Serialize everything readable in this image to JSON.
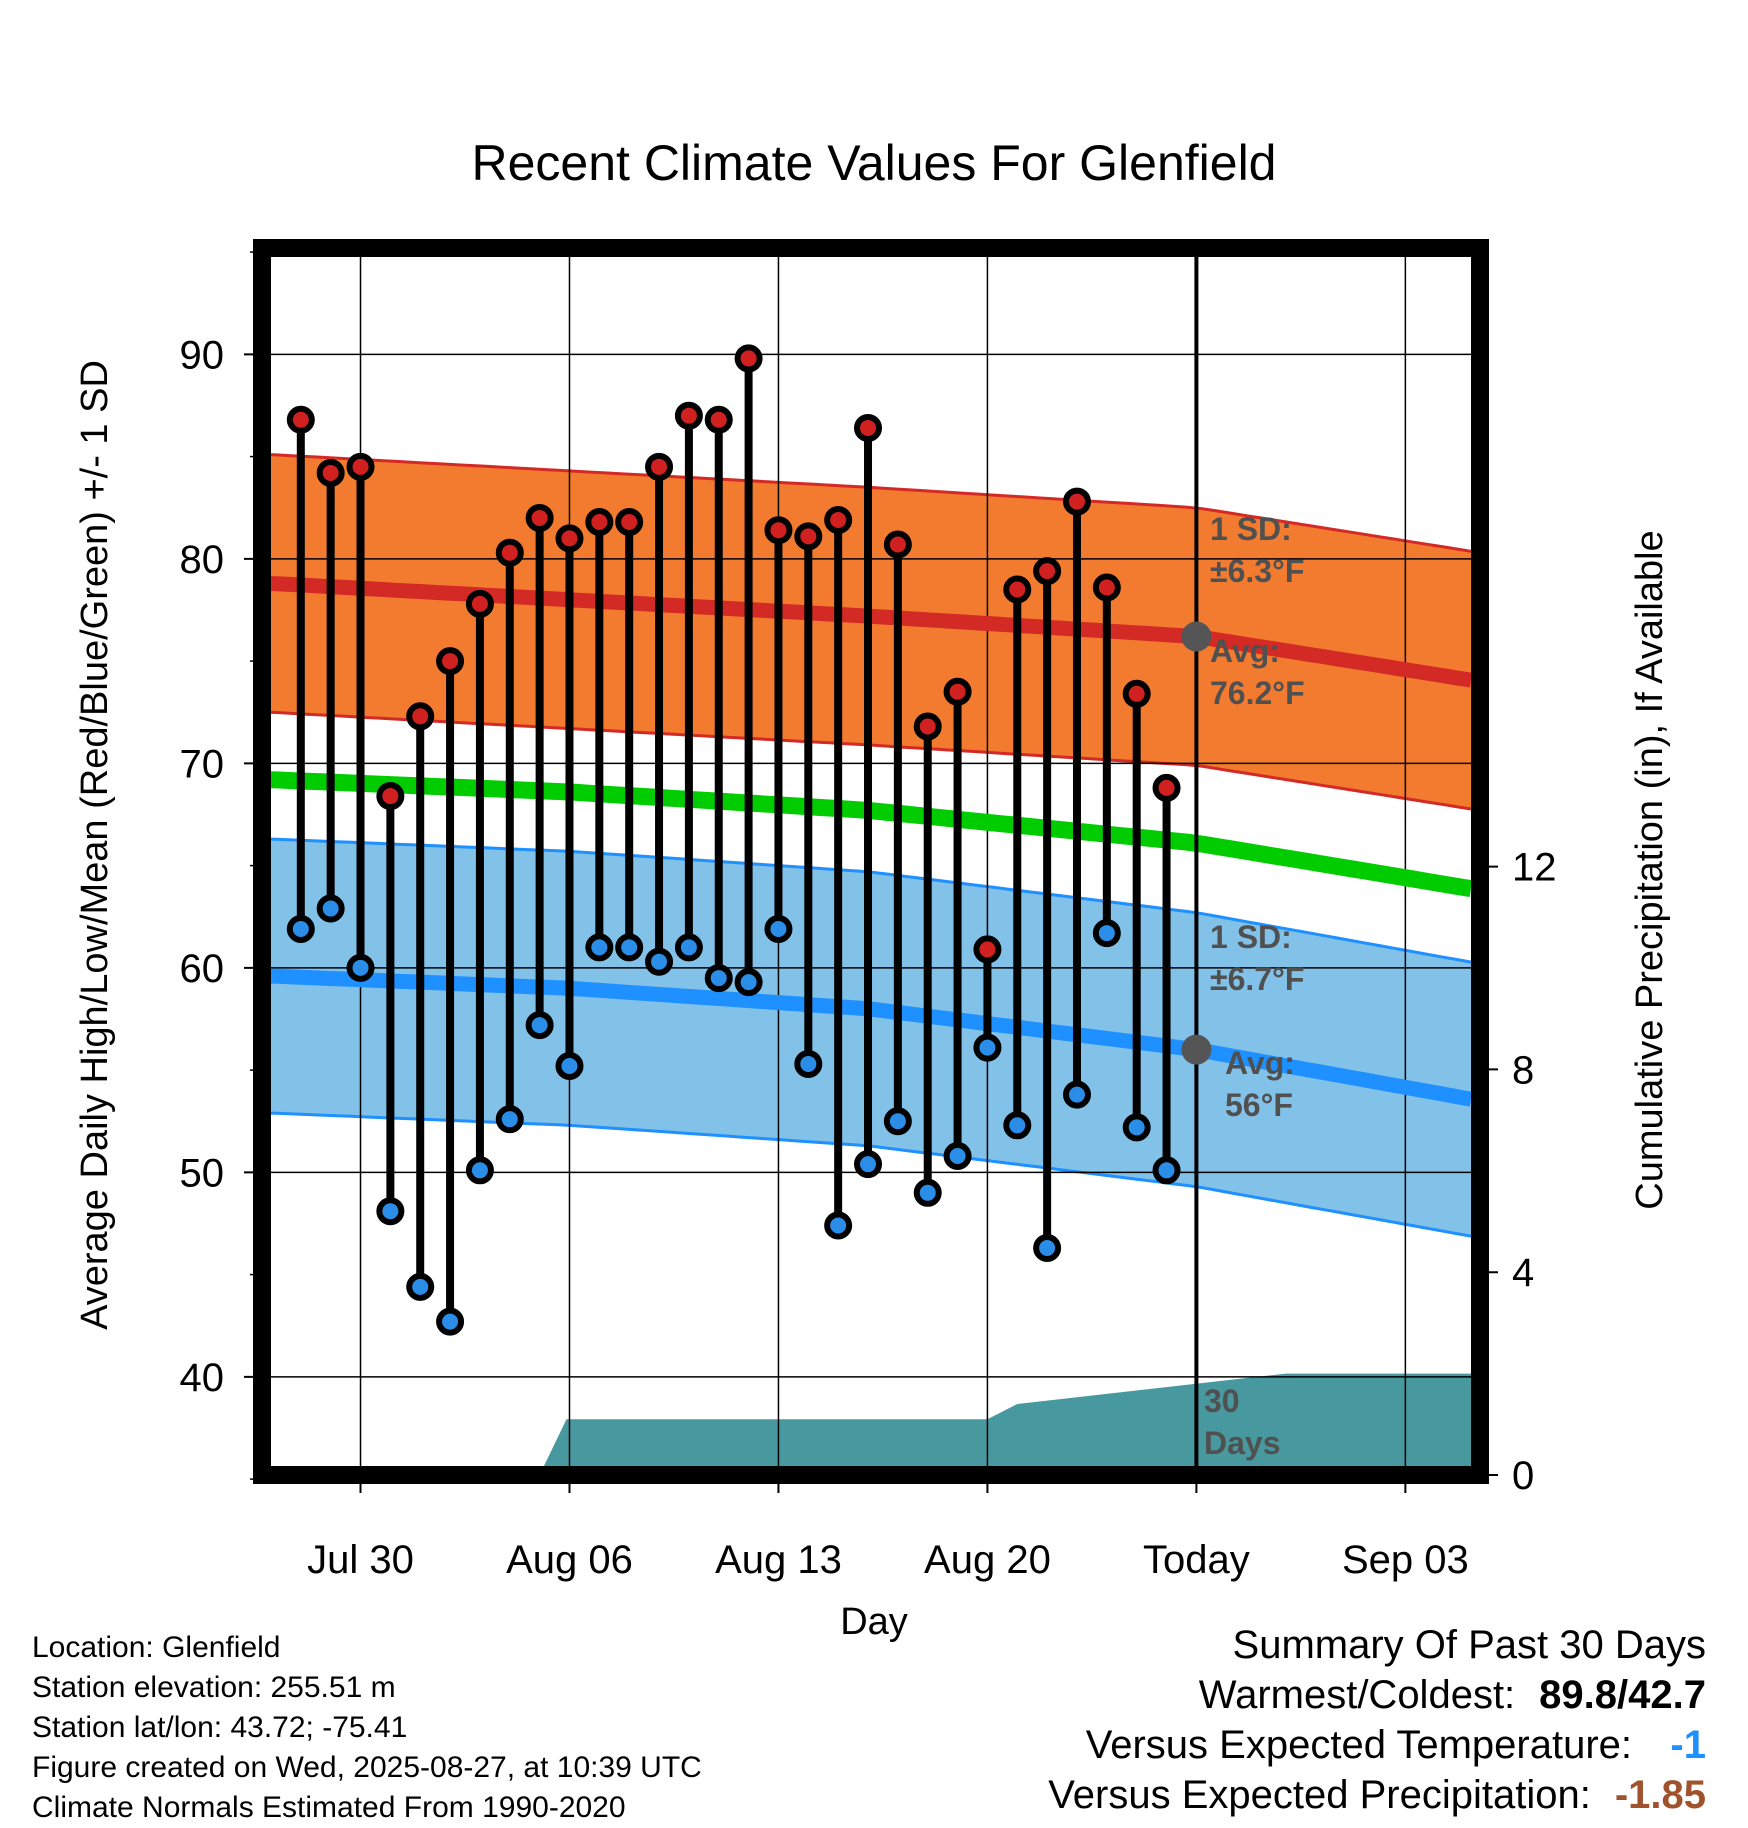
{
  "chart_data": {
    "type": "line",
    "title": "Recent Climate Values For Glenfield",
    "xlabel": "Day",
    "ylabel_left": "Average Daily High/Low/Mean (Red/Blue/Green) +/- 1 SD",
    "ylabel_right": "Cumulative Precipitation (in), If Available",
    "x_ticks": [
      {
        "day": 3,
        "label": "Jul 30"
      },
      {
        "day": 10,
        "label": "Aug 06"
      },
      {
        "day": 17,
        "label": "Aug 13"
      },
      {
        "day": 24,
        "label": "Aug 20"
      },
      {
        "day": 31,
        "label": "Today"
      },
      {
        "day": 38,
        "label": "Sep 03"
      }
    ],
    "x_range": [
      -0.3,
      40.5
    ],
    "ylim_left": [
      35.2,
      95.2
    ],
    "y_ticks_left": [
      40,
      50,
      60,
      70,
      80,
      90
    ],
    "ylim_right": [
      0,
      24.2
    ],
    "y_ticks_right": [
      0,
      4,
      8,
      12
    ],
    "today_day": 31,
    "grid": true,
    "daily_high": [
      86.8,
      84.2,
      84.5,
      68.4,
      72.3,
      75.0,
      77.8,
      80.3,
      82.0,
      81.0,
      81.8,
      81.8,
      84.5,
      87.0,
      86.8,
      89.8,
      81.4,
      81.1,
      81.9,
      86.4,
      80.7,
      71.8,
      73.5,
      60.9,
      78.5,
      79.4,
      82.8,
      78.6,
      73.4,
      68.8
    ],
    "daily_low": [
      61.9,
      62.9,
      60.0,
      48.1,
      44.4,
      42.7,
      50.1,
      52.6,
      57.2,
      55.2,
      61.0,
      61.0,
      60.3,
      61.0,
      59.5,
      59.3,
      61.9,
      55.3,
      47.4,
      50.4,
      52.5,
      49.0,
      50.8,
      56.1,
      52.3,
      46.3,
      53.8,
      61.7,
      52.2,
      50.1
    ],
    "normal_high": {
      "days": [
        0,
        10,
        20,
        31,
        40.5
      ],
      "values": [
        78.8,
        78.0,
        77.2,
        76.2,
        74.0
      ]
    },
    "normal_high_sd": 6.3,
    "normal_low": {
      "days": [
        0,
        10,
        20,
        31,
        40.5
      ],
      "values": [
        59.6,
        59.0,
        58.0,
        56.0,
        53.5
      ]
    },
    "normal_low_sd": 6.7,
    "normal_mean": {
      "days": [
        0,
        10,
        20,
        31,
        40.5
      ],
      "values": [
        69.2,
        68.6,
        67.7,
        66.1,
        63.8
      ]
    },
    "cumulative_precip": {
      "days": [
        9,
        9.9,
        24,
        25,
        34,
        40.5
      ],
      "values": [
        0,
        1.1,
        1.1,
        1.4,
        2.0,
        2.0
      ]
    },
    "annotations": {
      "high_sd": [
        "1 SD:",
        "±6.3°F"
      ],
      "high_avg": [
        "Avg:",
        "76.2°F"
      ],
      "low_sd": [
        "1 SD:",
        "±6.7°F"
      ],
      "low_avg": [
        "Avg:",
        "56°F"
      ],
      "precip_days": [
        "30",
        "Days"
      ]
    },
    "colors": {
      "high_band": "#f37b30",
      "high_line": "#d32a25",
      "low_band": "#82c1e8",
      "low_line": "#1e90ff",
      "mean_line": "#00cc00",
      "precip_fill": "#48999f",
      "high_dot": "#d02020",
      "low_dot": "#2a8ee8",
      "today_dot": "#555555"
    }
  },
  "info": {
    "location": "Location: Glenfield",
    "elevation": "Station elevation: 255.51 m",
    "latlon": "Station lat/lon: 43.72; -75.41",
    "created": "Figure created on Wed, 2025-08-27, at 10:39 UTC",
    "normals": "Climate Normals Estimated From 1990-2020"
  },
  "summary": {
    "title": "Summary Of Past 30 Days",
    "warm_cold_label": "Warmest/Coldest:",
    "warm_cold_value": "89.8/42.7",
    "temp_label": "Versus Expected Temperature:",
    "temp_value": "-1",
    "temp_color": "#1e90ff",
    "precip_label": "Versus Expected Precipitation:",
    "precip_value": "-1.85",
    "precip_color": "#a0522d"
  }
}
